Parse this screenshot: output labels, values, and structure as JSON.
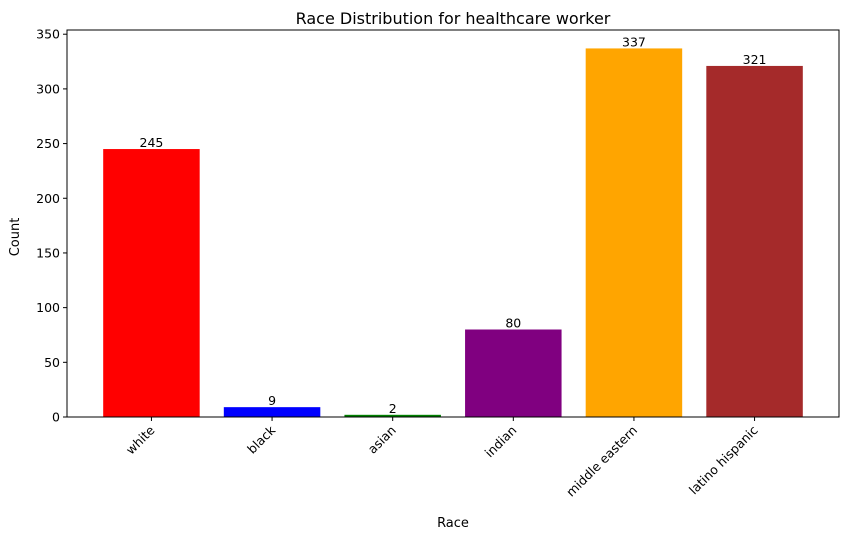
{
  "chart_data": {
    "type": "bar",
    "title": "Race Distribution for healthcare worker",
    "xlabel": "Race",
    "ylabel": "Count",
    "categories": [
      "white",
      "black",
      "asian",
      "indian",
      "middle eastern",
      "latino hispanic"
    ],
    "values": [
      245,
      9,
      2,
      80,
      337,
      321
    ],
    "colors": [
      "#ff0000",
      "#0000ff",
      "#008000",
      "#800080",
      "#ffa500",
      "#a52a2a"
    ],
    "ylim": [
      0,
      353.85
    ],
    "yticks": [
      0,
      50,
      100,
      150,
      200,
      250,
      300,
      350
    ],
    "grid": false,
    "legend": "none"
  }
}
